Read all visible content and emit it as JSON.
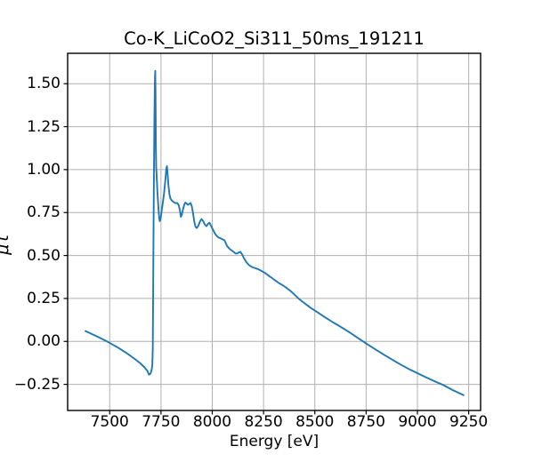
{
  "chart_data": {
    "type": "line",
    "title": "Co-K_LiCoO2_Si311_50ms_191211",
    "xlabel": "Energy [eV]",
    "ylabel": "μt",
    "xlim": [
      7295,
      9308
    ],
    "ylim": [
      -0.402,
      1.677
    ],
    "x_ticks": [
      7500,
      7750,
      8000,
      8250,
      8500,
      8750,
      9000,
      9250
    ],
    "x_tick_labels": [
      "7500",
      "7750",
      "8000",
      "8250",
      "8500",
      "8750",
      "9000",
      "9250"
    ],
    "y_ticks": [
      -0.25,
      0.0,
      0.25,
      0.5,
      0.75,
      1.0,
      1.25,
      1.5
    ],
    "y_tick_labels": [
      "−0.25",
      "0.00",
      "0.25",
      "0.50",
      "0.75",
      "1.00",
      "1.25",
      "1.50"
    ],
    "grid": true,
    "legend_position": "none",
    "colors": {
      "line": "#1f77b4",
      "grid": "#b0b0b0",
      "spine": "#000000",
      "text": "#000000",
      "background": "#ffffff"
    },
    "series": [
      {
        "name": "Co-K_LiCoO2_Si311_50ms_191211",
        "points": [
          [
            7382,
            0.06
          ],
          [
            7440,
            0.028
          ],
          [
            7490,
            -0.002
          ],
          [
            7540,
            -0.036
          ],
          [
            7580,
            -0.066
          ],
          [
            7620,
            -0.1
          ],
          [
            7650,
            -0.128
          ],
          [
            7670,
            -0.152
          ],
          [
            7684,
            -0.172
          ],
          [
            7691,
            -0.193
          ],
          [
            7697,
            -0.19
          ],
          [
            7702,
            -0.178
          ],
          [
            7706,
            -0.155
          ],
          [
            7708,
            -0.132
          ],
          [
            7710,
            -0.04
          ],
          [
            7712,
            0.32
          ],
          [
            7714,
            0.7
          ],
          [
            7716,
            1.02
          ],
          [
            7718,
            1.3
          ],
          [
            7720,
            1.5
          ],
          [
            7722,
            1.575
          ],
          [
            7723.5,
            1.45
          ],
          [
            7725,
            1.15
          ],
          [
            7726.5,
            1.015
          ],
          [
            7728,
            0.985
          ],
          [
            7730,
            0.935
          ],
          [
            7733,
            0.862
          ],
          [
            7737,
            0.787
          ],
          [
            7741,
            0.722
          ],
          [
            7744,
            0.7
          ],
          [
            7748,
            0.712
          ],
          [
            7753,
            0.758
          ],
          [
            7759,
            0.808
          ],
          [
            7765,
            0.862
          ],
          [
            7771,
            0.935
          ],
          [
            7776,
            1.005
          ],
          [
            7779,
            1.02
          ],
          [
            7782,
            0.98
          ],
          [
            7786,
            0.912
          ],
          [
            7791,
            0.858
          ],
          [
            7796,
            0.832
          ],
          [
            7803,
            0.82
          ],
          [
            7811,
            0.812
          ],
          [
            7820,
            0.805
          ],
          [
            7829,
            0.806
          ],
          [
            7836,
            0.795
          ],
          [
            7842,
            0.765
          ],
          [
            7847,
            0.725
          ],
          [
            7852,
            0.738
          ],
          [
            7858,
            0.772
          ],
          [
            7864,
            0.798
          ],
          [
            7869,
            0.808
          ],
          [
            7875,
            0.802
          ],
          [
            7881,
            0.795
          ],
          [
            7888,
            0.8
          ],
          [
            7894,
            0.806
          ],
          [
            7900,
            0.788
          ],
          [
            7906,
            0.748
          ],
          [
            7912,
            0.7
          ],
          [
            7918,
            0.668
          ],
          [
            7924,
            0.66
          ],
          [
            7932,
            0.673
          ],
          [
            7941,
            0.7
          ],
          [
            7948,
            0.712
          ],
          [
            7956,
            0.7
          ],
          [
            7964,
            0.68
          ],
          [
            7972,
            0.671
          ],
          [
            7979,
            0.684
          ],
          [
            7986,
            0.691
          ],
          [
            7994,
            0.673
          ],
          [
            8004,
            0.648
          ],
          [
            8016,
            0.622
          ],
          [
            8030,
            0.605
          ],
          [
            8046,
            0.597
          ],
          [
            8060,
            0.588
          ],
          [
            8072,
            0.555
          ],
          [
            8085,
            0.538
          ],
          [
            8100,
            0.525
          ],
          [
            8113,
            0.512
          ],
          [
            8122,
            0.512
          ],
          [
            8130,
            0.518
          ],
          [
            8137,
            0.522
          ],
          [
            8145,
            0.507
          ],
          [
            8155,
            0.483
          ],
          [
            8167,
            0.46
          ],
          [
            8180,
            0.443
          ],
          [
            8195,
            0.432
          ],
          [
            8210,
            0.426
          ],
          [
            8225,
            0.42
          ],
          [
            8240,
            0.41
          ],
          [
            8255,
            0.4
          ],
          [
            8272,
            0.385
          ],
          [
            8290,
            0.37
          ],
          [
            8310,
            0.352
          ],
          [
            8328,
            0.337
          ],
          [
            8342,
            0.328
          ],
          [
            8360,
            0.313
          ],
          [
            8380,
            0.295
          ],
          [
            8400,
            0.273
          ],
          [
            8425,
            0.245
          ],
          [
            8450,
            0.222
          ],
          [
            8480,
            0.195
          ],
          [
            8515,
            0.168
          ],
          [
            8550,
            0.14
          ],
          [
            8590,
            0.11
          ],
          [
            8630,
            0.082
          ],
          [
            8670,
            0.052
          ],
          [
            8710,
            0.02
          ],
          [
            8750,
            -0.012
          ],
          [
            8800,
            -0.05
          ],
          [
            8840,
            -0.08
          ],
          [
            8880,
            -0.108
          ],
          [
            8920,
            -0.136
          ],
          [
            8960,
            -0.162
          ],
          [
            9000,
            -0.185
          ],
          [
            9040,
            -0.208
          ],
          [
            9080,
            -0.23
          ],
          [
            9126,
            -0.254
          ],
          [
            9175,
            -0.285
          ],
          [
            9225,
            -0.313
          ]
        ]
      }
    ]
  }
}
